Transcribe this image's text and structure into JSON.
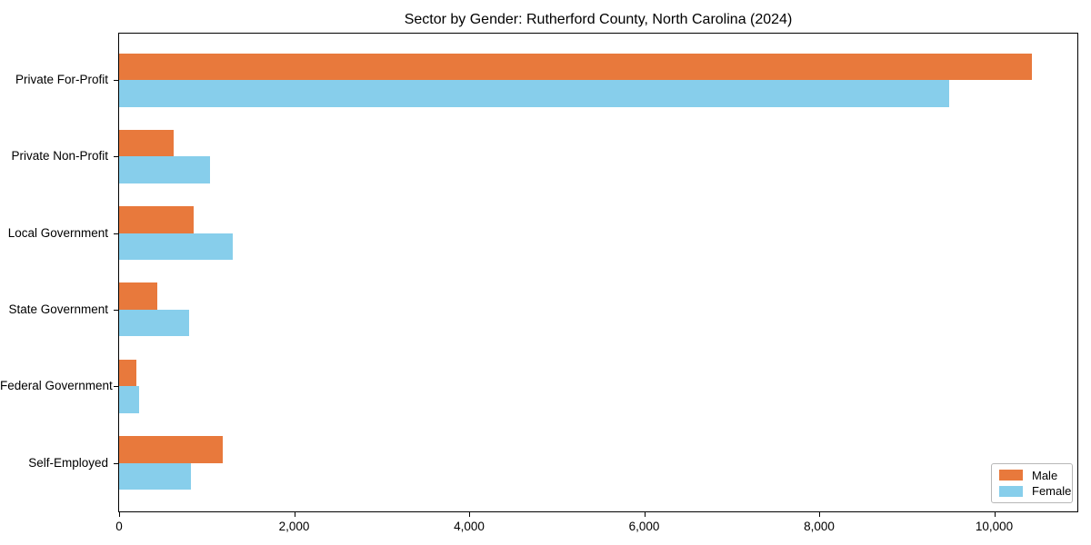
{
  "title": "Sector by Gender: Rutherford County, North Carolina (2024)",
  "colors": {
    "male_bar": "#e8793c",
    "female_bar": "#87ceeb",
    "axis": "#000000",
    "legend_border": "#b7b7b7",
    "background": "#ffffff"
  },
  "chart_data": {
    "type": "bar",
    "orientation": "horizontal",
    "title": "Sector by Gender: Rutherford County, North Carolina (2024)",
    "xlabel": "",
    "ylabel": "",
    "grid": false,
    "legend_position": "lower right",
    "categories": [
      "Private For-Profit",
      "Private Non-Profit",
      "Local Government",
      "State Government",
      "Federal Government",
      "Self-Employed"
    ],
    "series": [
      {
        "name": "Male",
        "color": "#e8793c",
        "values": [
          10430,
          625,
          855,
          435,
          200,
          1185
        ]
      },
      {
        "name": "Female",
        "color": "#87ceeb",
        "values": [
          9480,
          1040,
          1300,
          805,
          230,
          820
        ]
      }
    ],
    "xlim": [
      0,
      10950
    ],
    "xticks": [
      0,
      2000,
      4000,
      6000,
      8000,
      10000
    ],
    "xtick_labels": [
      "0",
      "2,000",
      "4,000",
      "6,000",
      "8,000",
      "10,000"
    ]
  },
  "legend": {
    "items": [
      {
        "label": "Male"
      },
      {
        "label": "Female"
      }
    ]
  }
}
